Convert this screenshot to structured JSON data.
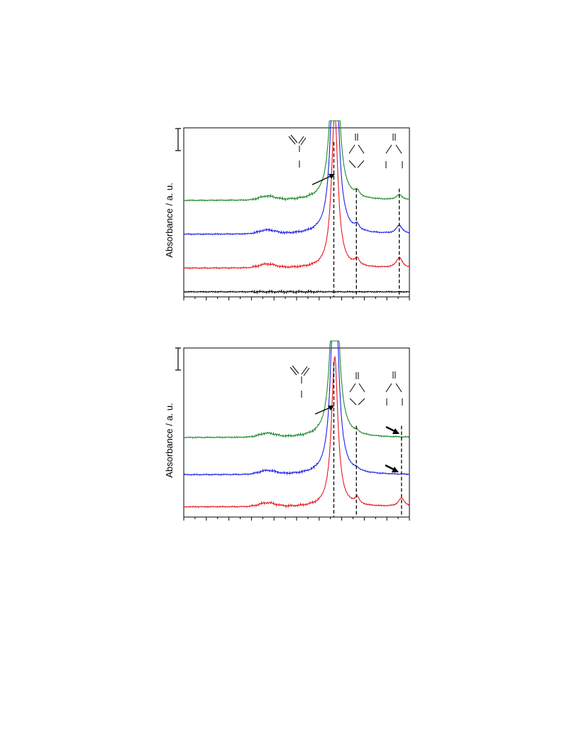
{
  "chart_data": [
    {
      "type": "line",
      "title": "",
      "xlabel": "",
      "ylabel": "Absorbance / a. u.",
      "xlim": [
        0,
        100
      ],
      "ylim": [
        0,
        100
      ],
      "grid": false,
      "scale_bar": true,
      "series": [
        {
          "color": "#000000",
          "offset": 3,
          "peak1": 0,
          "peak2": 0,
          "peak3": 0
        },
        {
          "color": "#e8191c",
          "offset": 17,
          "peak1": 93,
          "peak2": 4,
          "peak3": 6
        },
        {
          "color": "#1a22e6",
          "offset": 37,
          "peak1": 140,
          "peak2": 3,
          "peak3": 5
        },
        {
          "color": "#1f8a2a",
          "offset": 57,
          "peak1": 140,
          "peak2": 3,
          "peak3": 3
        }
      ],
      "reference_lines_x": [
        66.5,
        76.5,
        95.5
      ],
      "annotations": [
        "molecule-structure-1",
        "molecule-structure-2",
        "molecule-structure-3",
        "arrow"
      ]
    },
    {
      "type": "line",
      "title": "",
      "xlabel": "",
      "ylabel": "Absorbance / a. u.",
      "xlim": [
        0,
        100
      ],
      "ylim": [
        0,
        100
      ],
      "grid": false,
      "scale_bar": true,
      "series": [
        {
          "color": "#e8191c",
          "offset": 6,
          "peak1": 89,
          "peak2": 4,
          "peak3": 5
        },
        {
          "color": "#1a22e6",
          "offset": 25,
          "peak1": 140,
          "peak2": 1,
          "peak3": 0
        },
        {
          "color": "#1f8a2a",
          "offset": 47,
          "peak1": 140,
          "peak2": 1,
          "peak3": 0
        }
      ],
      "reference_lines_x": [
        66.5,
        76.5,
        96.5
      ],
      "annotations": [
        "molecule-structure-1",
        "molecule-structure-2",
        "molecule-structure-3",
        "arrow",
        "arrow",
        "arrow"
      ]
    }
  ]
}
